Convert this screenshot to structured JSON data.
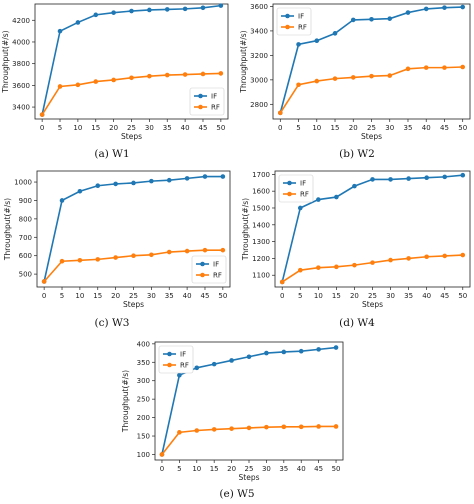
{
  "chart_data": [
    {
      "id": "w1",
      "type": "line",
      "caption": "(a)  W1",
      "xlabel": "Steps",
      "ylabel": "Throughput(#/s)",
      "x": [
        0,
        5,
        10,
        15,
        20,
        25,
        30,
        35,
        40,
        45,
        50
      ],
      "xlim": [
        -2,
        52
      ],
      "xticks": [
        0,
        5,
        10,
        15,
        20,
        25,
        30,
        35,
        40,
        45,
        50
      ],
      "ylim": [
        3290,
        4350
      ],
      "yticks": [
        3400,
        3600,
        3800,
        4000,
        4200
      ],
      "legend_position": "bottom-right",
      "series": [
        {
          "name": "IF",
          "color": "#1f77b4",
          "values": [
            3330,
            4100,
            4180,
            4250,
            4270,
            4285,
            4295,
            4300,
            4305,
            4315,
            4335
          ]
        },
        {
          "name": "RF",
          "color": "#ff7f0e",
          "values": [
            3330,
            3590,
            3605,
            3635,
            3650,
            3670,
            3685,
            3695,
            3700,
            3705,
            3710
          ]
        }
      ]
    },
    {
      "id": "w2",
      "type": "line",
      "caption": "(b)  W2",
      "xlabel": "Steps",
      "ylabel": "Throughput(#/s)",
      "x": [
        0,
        5,
        10,
        15,
        20,
        25,
        30,
        35,
        40,
        45,
        50
      ],
      "xlim": [
        -2,
        52
      ],
      "xticks": [
        0,
        5,
        10,
        15,
        20,
        25,
        30,
        35,
        40,
        45,
        50
      ],
      "ylim": [
        2680,
        3620
      ],
      "yticks": [
        2800,
        3000,
        3200,
        3400,
        3600
      ],
      "legend_position": "top-left",
      "series": [
        {
          "name": "IF",
          "color": "#1f77b4",
          "values": [
            2730,
            3290,
            3320,
            3380,
            3490,
            3495,
            3500,
            3550,
            3580,
            3590,
            3595
          ]
        },
        {
          "name": "RF",
          "color": "#ff7f0e",
          "values": [
            2730,
            2960,
            2990,
            3010,
            3020,
            3030,
            3035,
            3090,
            3100,
            3100,
            3105
          ]
        }
      ]
    },
    {
      "id": "w3",
      "type": "line",
      "caption": "(c)  W3",
      "xlabel": "Steps",
      "ylabel": "Throughput(#/s)",
      "x": [
        0,
        5,
        10,
        15,
        20,
        25,
        30,
        35,
        40,
        45,
        50
      ],
      "xlim": [
        -2,
        52
      ],
      "xticks": [
        0,
        5,
        10,
        15,
        20,
        25,
        30,
        35,
        40,
        45,
        50
      ],
      "ylim": [
        430,
        1060
      ],
      "yticks": [
        500,
        600,
        700,
        800,
        900,
        1000
      ],
      "legend_position": "bottom-right",
      "series": [
        {
          "name": "IF",
          "color": "#1f77b4",
          "values": [
            460,
            900,
            950,
            980,
            990,
            995,
            1005,
            1010,
            1020,
            1030,
            1030
          ]
        },
        {
          "name": "RF",
          "color": "#ff7f0e",
          "values": [
            460,
            570,
            575,
            580,
            590,
            600,
            605,
            620,
            625,
            630,
            630
          ]
        }
      ]
    },
    {
      "id": "w4",
      "type": "line",
      "caption": "(d)  W4",
      "xlabel": "Steps",
      "ylabel": "Throughput(#/s)",
      "x": [
        0,
        5,
        10,
        15,
        20,
        25,
        30,
        35,
        40,
        45,
        50
      ],
      "xlim": [
        -2,
        52
      ],
      "xticks": [
        0,
        5,
        10,
        15,
        20,
        25,
        30,
        35,
        40,
        45,
        50
      ],
      "ylim": [
        1030,
        1720
      ],
      "yticks": [
        1100,
        1200,
        1300,
        1400,
        1500,
        1600,
        1700
      ],
      "legend_position": "top-left",
      "series": [
        {
          "name": "IF",
          "color": "#1f77b4",
          "values": [
            1060,
            1500,
            1550,
            1565,
            1630,
            1670,
            1670,
            1675,
            1680,
            1685,
            1695
          ]
        },
        {
          "name": "RF",
          "color": "#ff7f0e",
          "values": [
            1060,
            1130,
            1145,
            1150,
            1160,
            1175,
            1190,
            1200,
            1210,
            1215,
            1220
          ]
        }
      ]
    },
    {
      "id": "w5",
      "type": "line",
      "caption": "(e)  W5",
      "xlabel": "Steps",
      "ylabel": "Throughput(#/s)",
      "x": [
        0,
        5,
        10,
        15,
        20,
        25,
        30,
        35,
        40,
        45,
        50
      ],
      "xlim": [
        -2,
        52
      ],
      "xticks": [
        0,
        5,
        10,
        15,
        20,
        25,
        30,
        35,
        40,
        45,
        50
      ],
      "ylim": [
        85,
        405
      ],
      "yticks": [
        100,
        150,
        200,
        250,
        300,
        350,
        400
      ],
      "legend_position": "top-left",
      "series": [
        {
          "name": "IF",
          "color": "#1f77b4",
          "values": [
            100,
            315,
            335,
            345,
            355,
            365,
            375,
            378,
            380,
            385,
            390
          ]
        },
        {
          "name": "RF",
          "color": "#ff7f0e",
          "values": [
            100,
            160,
            165,
            168,
            170,
            172,
            174,
            175,
            175,
            176,
            176
          ]
        }
      ]
    }
  ]
}
